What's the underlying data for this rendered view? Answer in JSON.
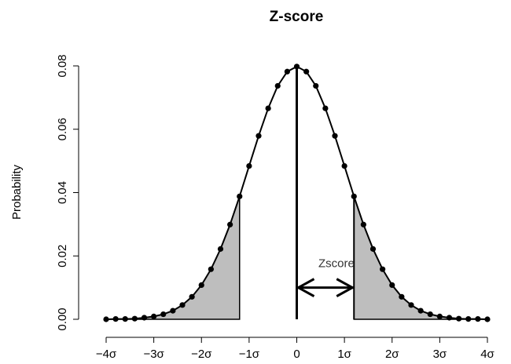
{
  "chart_data": {
    "type": "line",
    "title": "Z-score",
    "y_label": "Probability",
    "x": [
      -4,
      -3.8,
      -3.6,
      -3.4,
      -3.2,
      -3,
      -2.8,
      -2.6,
      -2.4,
      -2.2,
      -2,
      -1.8,
      -1.6,
      -1.4,
      -1.2,
      -1,
      -0.8,
      -0.6,
      -0.4,
      -0.2,
      0,
      0.2,
      0.4,
      0.6,
      0.8,
      1,
      1.2,
      1.4,
      1.6,
      1.8,
      2,
      2.2,
      2.4,
      2.6,
      2.8,
      3,
      3.2,
      3.4,
      3.6,
      3.8,
      4
    ],
    "values": [
      0.0,
      0.0001,
      0.0001,
      0.0002,
      0.0005,
      0.0009,
      0.0016,
      0.0027,
      0.0045,
      0.0071,
      0.0108,
      0.0158,
      0.0222,
      0.0299,
      0.0388,
      0.0484,
      0.0579,
      0.0666,
      0.0737,
      0.0782,
      0.0798,
      0.0782,
      0.0737,
      0.0666,
      0.0579,
      0.0484,
      0.0388,
      0.0299,
      0.0222,
      0.0158,
      0.0108,
      0.0071,
      0.0045,
      0.0027,
      0.0016,
      0.0009,
      0.0005,
      0.0002,
      0.0001,
      0.0001,
      0.0
    ],
    "color": "#000000",
    "shade_color": "#bebebe",
    "xlim": [
      -4,
      4
    ],
    "ylim": [
      0,
      0.08
    ],
    "xticks": [
      {
        "value": -4,
        "label": "−4σ"
      },
      {
        "value": -3,
        "label": "−3σ"
      },
      {
        "value": -2,
        "label": "−2σ"
      },
      {
        "value": -1,
        "label": "−1σ"
      },
      0,
      {
        "value": 1,
        "label": "1σ"
      },
      {
        "value": 2,
        "label": "2σ"
      },
      {
        "value": 3,
        "label": "3σ"
      },
      {
        "value": 4,
        "label": "4σ"
      }
    ],
    "yticks": [
      {
        "value": 0,
        "label": "0.00"
      },
      {
        "value": 0.02,
        "label": "0.02"
      },
      {
        "value": 0.04,
        "label": "0.04"
      },
      {
        "value": 0.06,
        "label": "0.06"
      },
      {
        "value": 0.08,
        "label": "0.08"
      }
    ],
    "annotations": [
      {
        "text": "Zscore",
        "x_from": 0,
        "x_to": 1.2,
        "y": 0.01
      }
    ]
  }
}
